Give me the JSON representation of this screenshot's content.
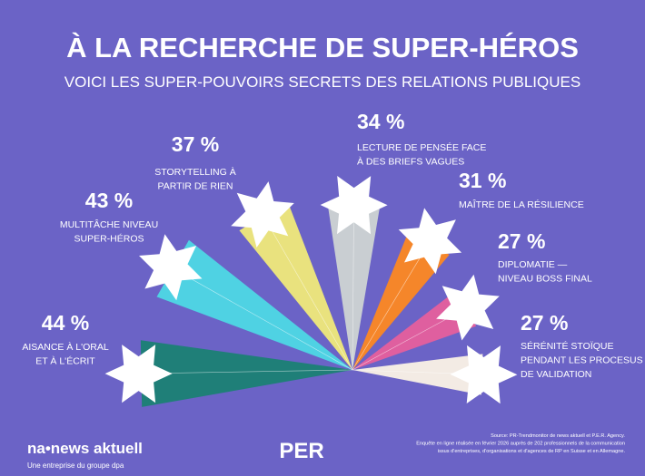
{
  "chart_data": {
    "type": "starburst",
    "title": "À LA RECHERCHE DE SUPER-HÉROS",
    "subtitle": "VOICI LES SUPER-POUVOIRS SECRETS DES RELATIONS PUBLIQUES",
    "categories": [
      [
        "AISANCE À L'ORAL",
        "ET À L'ÉCRIT"
      ],
      [
        "MULTITÂCHE NIVEAU",
        "SUPER-HÉROS"
      ],
      [
        "STORYTELLING À",
        "PARTIR DE RIEN"
      ],
      [
        "LECTURE DE PENSÉE FACE",
        "À DES BRIEFS VAGUES"
      ],
      [
        "MAÎTRE DE LA RÉSILIENCE"
      ],
      [
        "DIPLOMATIE —",
        "NIVEAU BOSS FINAL"
      ],
      [
        "SÉRÉNITÉ STOÏQUE",
        "PENDANT LES PROCESUS",
        "DE VALIDATION"
      ]
    ],
    "values": [
      44,
      43,
      37,
      34,
      31,
      27,
      27
    ],
    "value_labels": [
      "44 %",
      "43 %",
      "37 %",
      "34 %",
      "31 %",
      "27 %",
      "27 %"
    ],
    "colors": [
      "#1f7f78",
      "#4fd2e3",
      "#e9e27e",
      "#c9ced2",
      "#f5862a",
      "#df5f9f",
      "#f3ebe4"
    ],
    "brand": "na•news aktuell",
    "brand_tagline": "Une entreprise du groupe dpa",
    "partner": "PER",
    "source": [
      "Source: PR-Trendmonitor de news aktuell et P.E.R. Agency.",
      "Enquête en ligne réalisée en février 2026 auprès de 202 professionnels de la communication",
      "issus d'entreprises, d'organisations et d'agences de RP en Suisse et en Allemagne."
    ]
  }
}
